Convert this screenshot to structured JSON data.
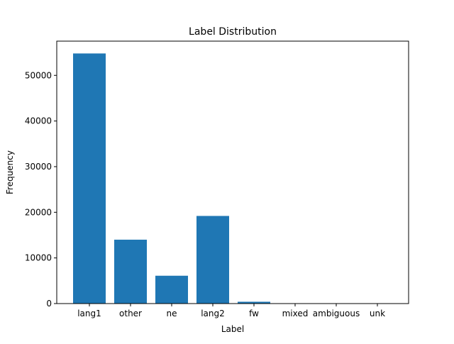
{
  "chart_data": {
    "type": "bar",
    "title": "Label Distribution",
    "xlabel": "Label",
    "ylabel": "Frequency",
    "categories": [
      "lang1",
      "other",
      "ne",
      "lang2",
      "fw",
      "mixed",
      "ambiguous",
      "unk"
    ],
    "values": [
      54800,
      14000,
      6100,
      19200,
      400,
      20,
      20,
      20
    ],
    "ylim": [
      0,
      57500
    ],
    "yticks": [
      0,
      10000,
      20000,
      30000,
      40000,
      50000
    ],
    "bar_color": "#1f77b4",
    "grid": false,
    "legend": "none"
  }
}
